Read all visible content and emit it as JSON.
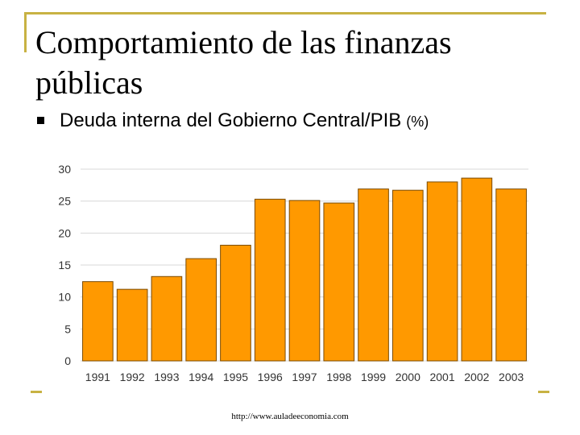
{
  "slide": {
    "title": "Comportamiento de las finanzas públicas",
    "bullet": "Deuda interna del Gobierno Central/PIB",
    "bullet_unit": "(%)",
    "footer_url": "http://www.auladeeconomia.com"
  },
  "colors": {
    "accent_frame": "#c8b243",
    "bar_fill": "#ff9900",
    "bar_stroke": "#7a4a00",
    "grid": "#d8d8d8"
  },
  "chart_data": {
    "type": "bar",
    "title": "",
    "xlabel": "",
    "ylabel": "",
    "categories": [
      "1991",
      "1992",
      "1993",
      "1994",
      "1995",
      "1996",
      "1997",
      "1998",
      "1999",
      "2000",
      "2001",
      "2002",
      "2003"
    ],
    "values": [
      12.4,
      11.2,
      13.2,
      16.0,
      18.1,
      25.3,
      25.1,
      24.7,
      26.9,
      26.7,
      28.0,
      28.6,
      26.9
    ],
    "ylim": [
      0,
      30
    ],
    "yticks": [
      0,
      5,
      10,
      15,
      20,
      25,
      30
    ],
    "grid": true,
    "legend": "none"
  }
}
